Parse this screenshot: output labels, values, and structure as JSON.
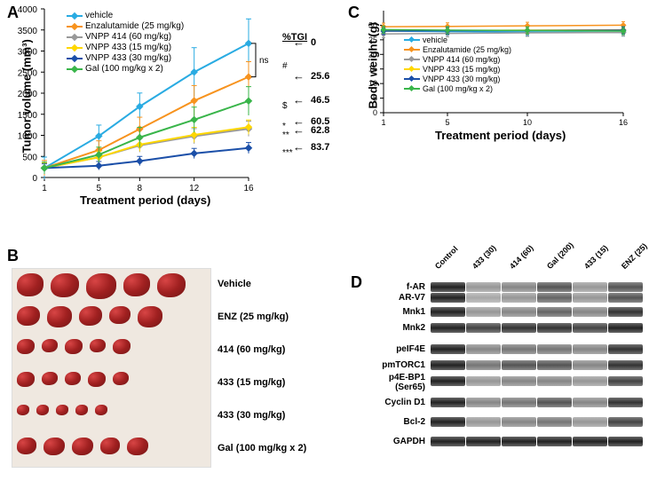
{
  "panelA": {
    "label": "A",
    "xTicks": [
      1,
      5,
      8,
      12,
      16
    ],
    "yTicks": [
      0,
      500,
      1000,
      1500,
      2000,
      2500,
      3000,
      3500,
      4000
    ],
    "xLabel": "Treatment period (days)",
    "yLabel": "Tumor volume (mm³)",
    "tgiHeader": "%TGI",
    "series": [
      {
        "name": "vehicle",
        "color": "#29abe2",
        "marker": "diamond",
        "values": [
          224,
          983,
          1684,
          2500,
          3182
        ],
        "err": [
          260,
          260,
          320,
          580,
          580
        ],
        "tgi": "0",
        "sig": "ns"
      },
      {
        "name": "Enzalutamide (25 mg/kg)",
        "color": "#f7931e",
        "marker": "square",
        "values": [
          224,
          650,
          1150,
          1820,
          2387
        ],
        "err": [
          180,
          220,
          280,
          360,
          360
        ],
        "tgi": "25.6",
        "sig": "#"
      },
      {
        "name": "VNPP 414 (60 mg/kg)",
        "color": "#999999",
        "marker": "triangle",
        "values": [
          224,
          480,
          760,
          980,
          1156
        ],
        "err": [
          120,
          140,
          160,
          180,
          180
        ],
        "tgi": "62.8",
        "sig": "**"
      },
      {
        "name": "VNPP 433 (15 mg/kg)",
        "color": "#ffd700",
        "marker": "x",
        "values": [
          224,
          480,
          780,
          1010,
          1194
        ],
        "err": [
          120,
          140,
          160,
          180,
          170
        ],
        "tgi": "60.5",
        "sig": "*"
      },
      {
        "name": "VNPP 433 (30 mg/kg)",
        "color": "#1b4fa8",
        "marker": "star",
        "values": [
          224,
          280,
          390,
          570,
          700
        ],
        "err": [
          100,
          100,
          110,
          120,
          130
        ],
        "tgi": "83.7",
        "sig": "***"
      },
      {
        "name": "Gal (100 mg/kg x 2)",
        "color": "#39b54a",
        "marker": "circle",
        "values": [
          224,
          540,
          950,
          1370,
          1815
        ],
        "err": [
          140,
          180,
          240,
          300,
          340
        ],
        "tgi": "46.5",
        "sig": "$"
      }
    ]
  },
  "panelB": {
    "label": "B",
    "rows": [
      {
        "label": "Vehicle",
        "sizes": [
          30,
          32,
          34,
          30,
          32
        ]
      },
      {
        "label": "ENZ (25 mg/kg)",
        "sizes": [
          26,
          28,
          26,
          24,
          28
        ]
      },
      {
        "label": "414 (60 mg/kg)",
        "sizes": [
          20,
          18,
          20,
          18,
          20
        ]
      },
      {
        "label": "433 (15 mg/kg)",
        "sizes": [
          20,
          18,
          18,
          20,
          18
        ]
      },
      {
        "label": "433 (30 mg/kg)",
        "sizes": [
          14,
          14,
          14,
          14,
          14
        ]
      },
      {
        "label": "Gal (100 mg/kg  x 2)",
        "sizes": [
          22,
          24,
          24,
          22,
          24
        ]
      }
    ]
  },
  "panelC": {
    "label": "C",
    "xTicks": [
      1,
      5,
      10,
      16
    ],
    "yTicks": [
      0,
      5,
      10,
      15,
      20,
      25,
      30
    ],
    "xLabel": "Treatment period (days)",
    "yLabel": "Body weight (g)",
    "series": [
      {
        "name": "vehicle",
        "color": "#29abe2",
        "values": [
          28.0,
          27.8,
          27.7,
          27.5
        ]
      },
      {
        "name": "Enzalutamide (25 mg/kg)",
        "color": "#f7931e",
        "values": [
          29.5,
          29.6,
          29.8,
          30.0
        ]
      },
      {
        "name": "VNPP 414 (60 mg/kg)",
        "color": "#999999",
        "values": [
          27.0,
          27.2,
          27.4,
          27.5
        ]
      },
      {
        "name": "VNPP 433 (15 mg/kg)",
        "color": "#ffd700",
        "values": [
          28.0,
          28.2,
          28.3,
          28.4
        ]
      },
      {
        "name": "VNPP 433 (30 mg/kg)",
        "color": "#1b4fa8",
        "values": [
          28.0,
          28.1,
          28.2,
          28.3
        ]
      },
      {
        "name": "Gal (100 mg/kg x 2)",
        "color": "#39b54a",
        "values": [
          28.5,
          28.3,
          28.2,
          28.0
        ]
      }
    ]
  },
  "panelD": {
    "label": "D",
    "columns": [
      "Control",
      "433 (30)",
      "414 (60)",
      "Gal (200)",
      "433 (15)",
      "ENZ (25)"
    ],
    "rows": [
      {
        "label": "f-AR",
        "intensities": [
          1.0,
          0.3,
          0.4,
          0.7,
          0.3,
          0.7
        ]
      },
      {
        "label": "AR-V7",
        "intensities": [
          1.0,
          0.2,
          0.3,
          0.6,
          0.3,
          0.7
        ]
      },
      {
        "label": "Mnk1",
        "intensities": [
          1.0,
          0.3,
          0.4,
          0.6,
          0.4,
          0.9
        ]
      },
      {
        "label": "Mnk2",
        "intensities": [
          1.0,
          0.8,
          0.9,
          0.9,
          0.8,
          1.0
        ]
      },
      {
        "label": "peIF4E",
        "intensities": [
          1.0,
          0.4,
          0.5,
          0.5,
          0.4,
          0.9
        ]
      },
      {
        "label": "pmTORC1",
        "intensities": [
          1.0,
          0.5,
          0.7,
          0.7,
          0.4,
          0.9
        ]
      },
      {
        "label": "p4E-BP1 (Ser65)",
        "intensities": [
          1.0,
          0.3,
          0.4,
          0.4,
          0.3,
          0.8
        ]
      },
      {
        "label": "Cyclin D1",
        "intensities": [
          1.0,
          0.4,
          0.5,
          0.7,
          0.4,
          0.9
        ]
      },
      {
        "label": "Bcl-2",
        "intensities": [
          1.0,
          0.3,
          0.4,
          0.5,
          0.3,
          0.8
        ]
      },
      {
        "label": "GAPDH",
        "intensities": [
          1.0,
          1.0,
          1.0,
          1.0,
          1.0,
          1.0
        ]
      }
    ]
  }
}
